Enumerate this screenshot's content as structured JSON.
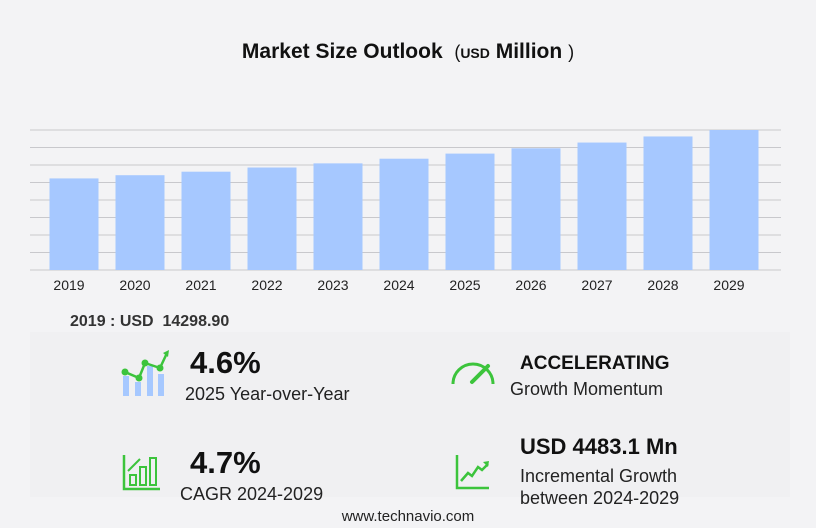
{
  "header": {
    "title": "Market Size Outlook",
    "unit_open": "(",
    "unit": "USD",
    "unit_suffix": "Million",
    "unit_close": ")"
  },
  "chart_data": {
    "type": "bar",
    "title": "Market Size Outlook (USD Million)",
    "categories": [
      "2019",
      "2020",
      "2021",
      "2022",
      "2023",
      "2024",
      "2025",
      "2026",
      "2027",
      "2028",
      "2029"
    ],
    "values": [
      14298.9,
      14800,
      15350,
      16000,
      16650,
      17376,
      18175,
      19000,
      19900,
      20850,
      21859
    ],
    "ylim": [
      0,
      21859
    ],
    "grid": true,
    "bar_color": "#a6c8ff"
  },
  "base_year": {
    "label": "2019 : USD",
    "value": "14298.90"
  },
  "stats": {
    "yoy": {
      "value": "4.6%",
      "label": "2025 Year-over-Year"
    },
    "momentum": {
      "value": "ACCELERATING",
      "label": "Growth Momentum"
    },
    "cagr": {
      "value": "4.7%",
      "label": "CAGR 2024-2029"
    },
    "incremental": {
      "value": "USD 4483.1 Mn",
      "label1": "Incremental Growth",
      "label2": "between 2024-2029"
    }
  },
  "colors": {
    "accent": "#3cc43c",
    "bar": "#a6c8ff"
  },
  "footer": "www.technavio.com"
}
